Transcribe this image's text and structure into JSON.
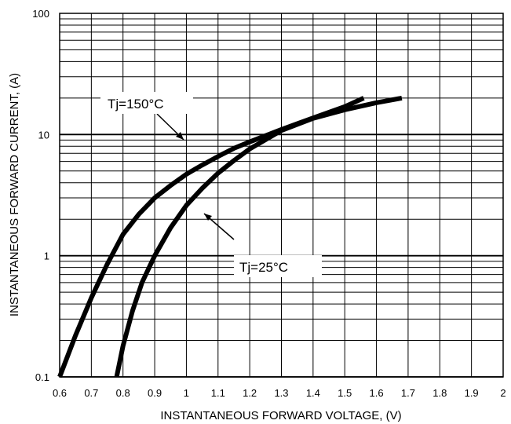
{
  "chart_data": {
    "type": "line",
    "xlabel": "INSTANTANEOUS FORWARD VOLTAGE, (V)",
    "ylabel": "INSTANTANEOUS FORWARD CURRENT, (A)",
    "xlim": [
      0.6,
      2.0
    ],
    "ylim": [
      0.1,
      100
    ],
    "yscale": "log",
    "grid": true,
    "x_ticks": [
      "0.6",
      "0.7",
      "0.8",
      "0.9",
      "1",
      "1.1",
      "1.2",
      "1.3",
      "1.4",
      "1.5",
      "1.6",
      "1.7",
      "1.8",
      "1.9",
      "2"
    ],
    "y_ticks": [
      "0.1",
      "1",
      "10",
      "100"
    ],
    "series": [
      {
        "name": "Tj=150°C",
        "x": [
          0.6,
          0.65,
          0.7,
          0.75,
          0.8,
          0.85,
          0.9,
          0.95,
          1.0,
          1.05,
          1.1,
          1.15,
          1.2,
          1.3,
          1.4,
          1.5,
          1.56
        ],
        "y": [
          0.1,
          0.22,
          0.45,
          0.85,
          1.5,
          2.2,
          3.0,
          3.8,
          4.7,
          5.6,
          6.6,
          7.7,
          8.7,
          11.0,
          13.7,
          17.0,
          20.0
        ]
      },
      {
        "name": "Tj=25°C",
        "x": [
          0.78,
          0.8,
          0.83,
          0.86,
          0.9,
          0.95,
          1.0,
          1.05,
          1.1,
          1.15,
          1.2,
          1.3,
          1.4,
          1.5,
          1.6,
          1.68
        ],
        "y": [
          0.1,
          0.18,
          0.35,
          0.6,
          1.0,
          1.7,
          2.6,
          3.6,
          4.8,
          6.1,
          7.6,
          10.8,
          13.6,
          16.0,
          18.3,
          20.0
        ]
      }
    ],
    "annotations": [
      {
        "text": "Tj=150°C",
        "series": 0,
        "arrow_to": [
          0.99,
          8.5
        ]
      },
      {
        "text": "Tj=25°C",
        "series": 1,
        "arrow_to": [
          1.03,
          2.2
        ]
      }
    ]
  }
}
